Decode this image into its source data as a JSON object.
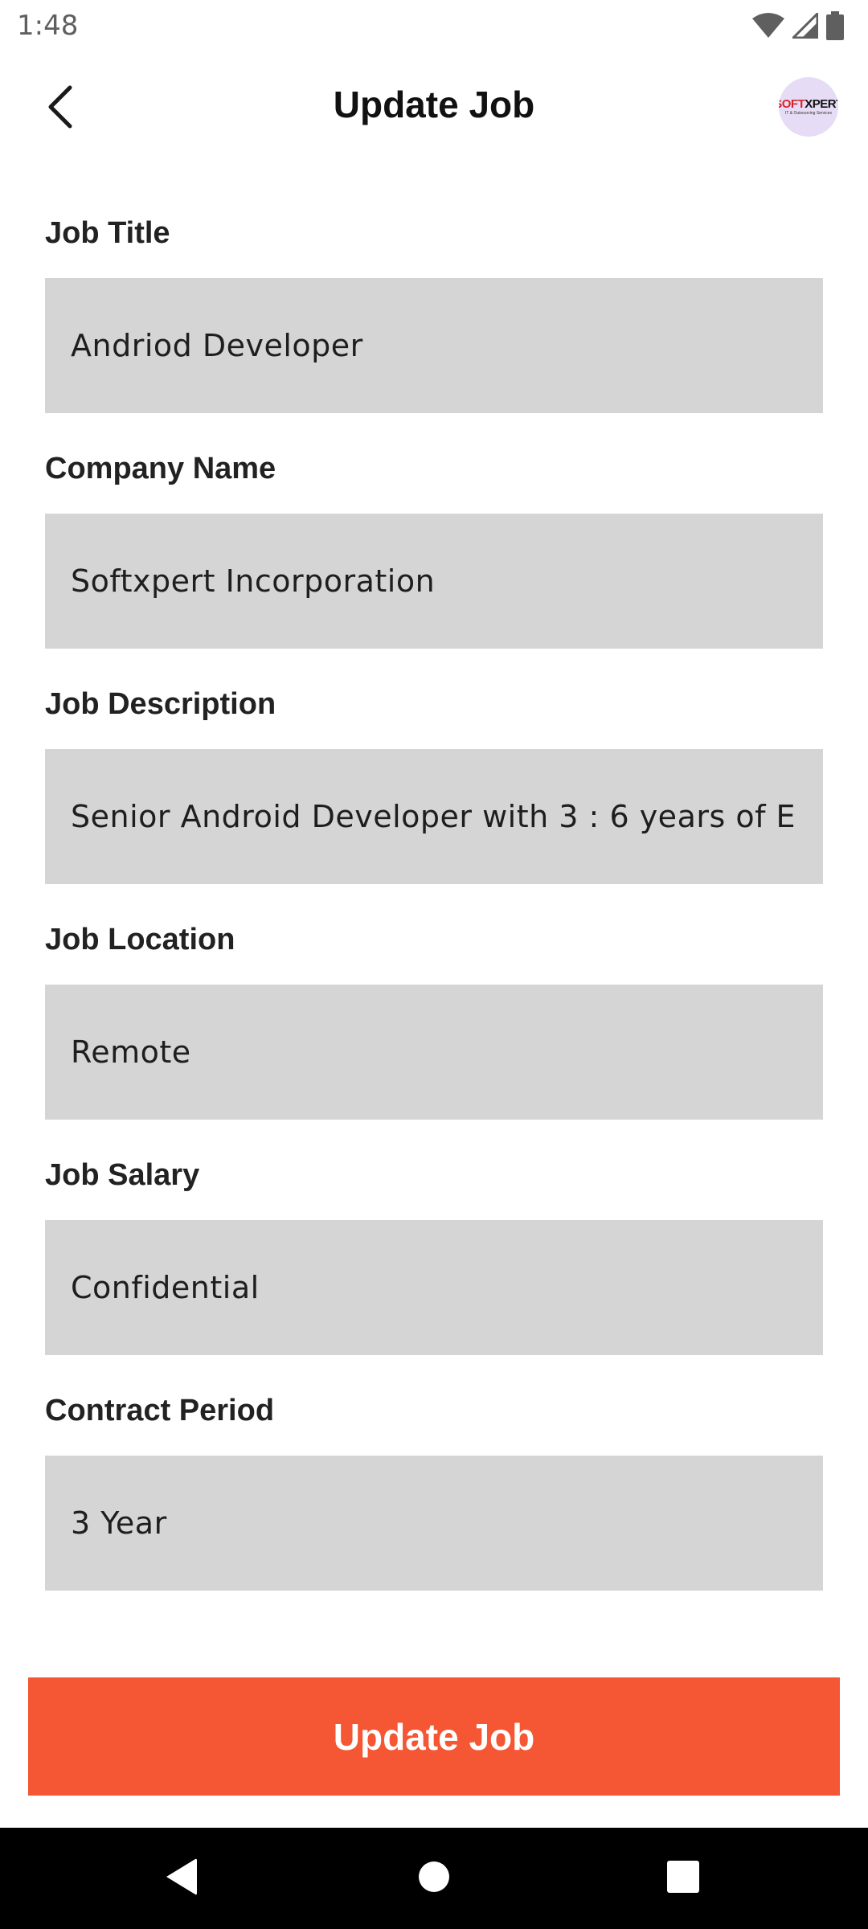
{
  "status_bar": {
    "time": "1:48",
    "icons": [
      "wifi-icon",
      "cellular-signal-icon",
      "battery-icon"
    ]
  },
  "app_bar": {
    "back_icon": "chevron-left-icon",
    "title": "Update Job",
    "logo": {
      "text_accent": "SOFT",
      "text_main": "XPERT",
      "subtext": "IT & Outsourcing Services"
    }
  },
  "form": {
    "fields": [
      {
        "label": "Job Title",
        "value": "Andriod Developer"
      },
      {
        "label": "Company Name",
        "value": "Softxpert Incorporation"
      },
      {
        "label": "Job Description",
        "value": "Senior Android Developer with 3 : 6 years of E"
      },
      {
        "label": "Job Location",
        "value": "Remote"
      },
      {
        "label": "Job Salary",
        "value": "Confidential"
      },
      {
        "label": "Contract Period",
        "value": "3 Year"
      }
    ]
  },
  "update_button": {
    "label": "Update Job"
  },
  "nav_bar": {
    "icons": [
      "back-triangle-icon",
      "home-circle-icon",
      "recents-square-icon"
    ]
  },
  "colors": {
    "accent": "#f55734",
    "field_background": "#d5d5d5",
    "logo_background": "#e6dcf6",
    "logo_accent": "#d8232a",
    "nav_background": "#000000"
  }
}
